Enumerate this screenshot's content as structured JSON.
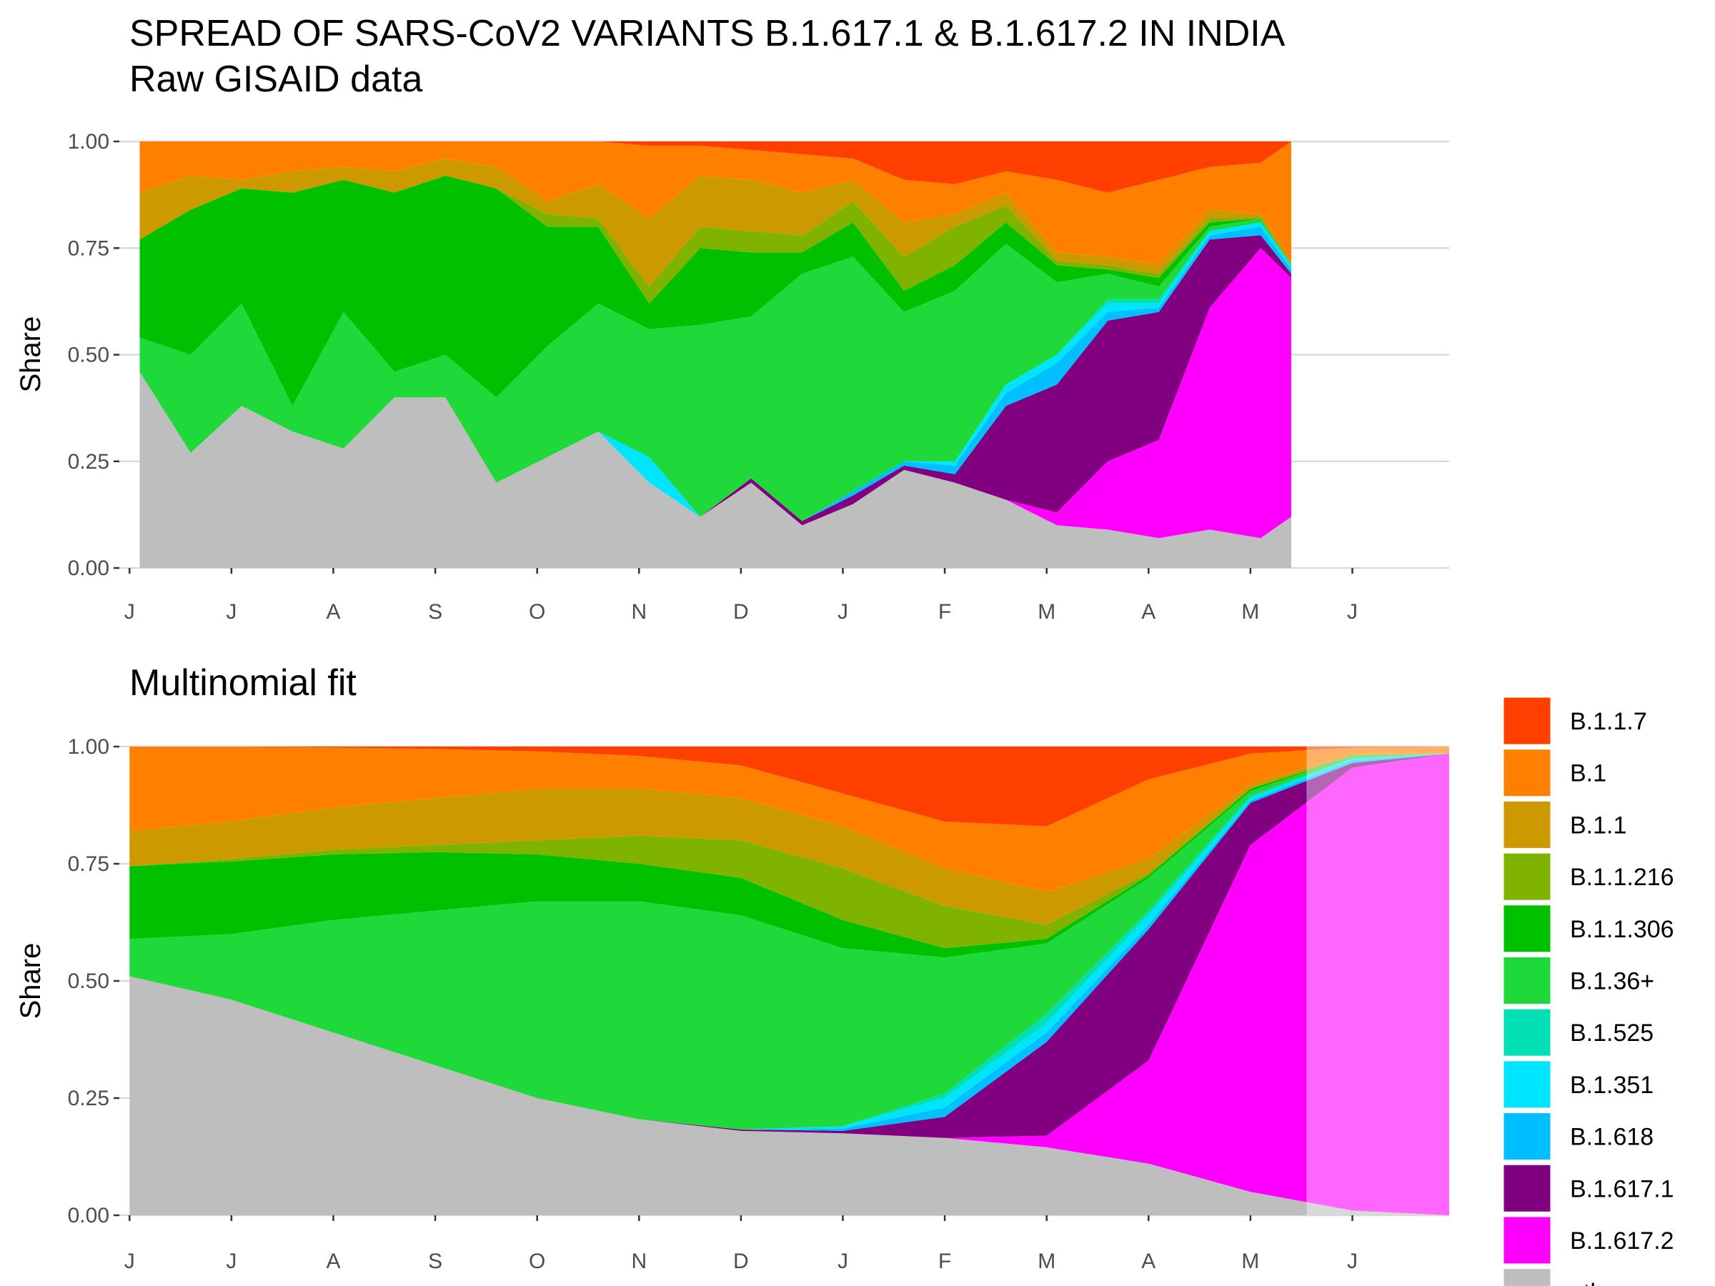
{
  "chart_data": [
    {
      "type": "area",
      "title": "SPREAD OF SARS-CoV2 VARIANTS B.1.617.1 & B.1.617.2 IN INDIA",
      "subtitle": "Raw GISAID data",
      "ylabel": "Share",
      "x": [
        0.1,
        0.6,
        1.1,
        1.6,
        2.1,
        2.6,
        3.1,
        3.6,
        4.1,
        4.6,
        5.1,
        5.6,
        6.1,
        6.6,
        7.1,
        7.6,
        8.1,
        8.6,
        9.1,
        9.6,
        10.1,
        10.6,
        11.1,
        11.4
      ],
      "xlim": [
        -0.1,
        12.95
      ],
      "xticks": [
        {
          "value": 0,
          "label": "J"
        },
        {
          "value": 1,
          "label": "J"
        },
        {
          "value": 2,
          "label": "A"
        },
        {
          "value": 3,
          "label": "S"
        },
        {
          "value": 4,
          "label": "O"
        },
        {
          "value": 5,
          "label": "N"
        },
        {
          "value": 6,
          "label": "D"
        },
        {
          "value": 7,
          "label": "J"
        },
        {
          "value": 8,
          "label": "F"
        },
        {
          "value": 9,
          "label": "M"
        },
        {
          "value": 10,
          "label": "A"
        },
        {
          "value": 11,
          "label": "M"
        },
        {
          "value": 12,
          "label": "J"
        }
      ],
      "ylim": [
        0,
        1
      ],
      "yticks": [
        {
          "value": 0,
          "label": "0.00"
        },
        {
          "value": 0.25,
          "label": "0.25"
        },
        {
          "value": 0.5,
          "label": "0.50"
        },
        {
          "value": 0.75,
          "label": "0.75"
        },
        {
          "value": 1,
          "label": "1.00"
        }
      ],
      "grid": true,
      "series": [
        {
          "name": "other",
          "color": "#bebebe",
          "values": [
            0.46,
            0.27,
            0.38,
            0.32,
            0.28,
            0.4,
            0.4,
            0.2,
            0.26,
            0.32,
            0.2,
            0.12,
            0.2,
            0.1,
            0.15,
            0.23,
            0.2,
            0.16,
            0.1,
            0.09,
            0.07,
            0.09,
            0.07,
            0.12
          ]
        },
        {
          "name": "B.1.617.2",
          "color": "#ff00ff",
          "values": [
            0,
            0,
            0,
            0,
            0,
            0,
            0,
            0,
            0,
            0,
            0,
            0,
            0,
            0,
            0,
            0,
            0,
            0,
            0.03,
            0.16,
            0.23,
            0.52,
            0.68,
            0.56
          ]
        },
        {
          "name": "B.1.617.1",
          "color": "#800080",
          "values": [
            0,
            0,
            0,
            0,
            0,
            0,
            0,
            0,
            0,
            0,
            0,
            0,
            0.01,
            0.01,
            0.02,
            0.01,
            0.02,
            0.22,
            0.3,
            0.33,
            0.3,
            0.16,
            0.03,
            0.01
          ]
        },
        {
          "name": "B.1.618",
          "color": "#00bfff",
          "values": [
            0,
            0,
            0,
            0,
            0,
            0,
            0,
            0,
            0,
            0,
            0,
            0,
            0,
            0,
            0.01,
            0.01,
            0.02,
            0.03,
            0.05,
            0.02,
            0.01,
            0.01,
            0.02,
            0.01
          ]
        },
        {
          "name": "B.1.351",
          "color": "#00e5ff",
          "values": [
            0,
            0,
            0,
            0,
            0,
            0,
            0,
            0,
            0,
            0,
            0.06,
            0,
            0,
            0,
            0,
            0,
            0.01,
            0.02,
            0.02,
            0.02,
            0.01,
            0.01,
            0.01,
            0.01
          ]
        },
        {
          "name": "B.1.525",
          "color": "#00e0b4",
          "values": [
            0,
            0,
            0,
            0,
            0,
            0,
            0,
            0,
            0,
            0,
            0,
            0,
            0,
            0,
            0,
            0,
            0,
            0,
            0,
            0.01,
            0.01,
            0,
            0,
            0
          ]
        },
        {
          "name": "B.1.36+",
          "color": "#1fd83a",
          "values": [
            0.08,
            0.23,
            0.24,
            0.06,
            0.32,
            0.06,
            0.1,
            0.2,
            0.26,
            0.3,
            0.3,
            0.45,
            0.38,
            0.58,
            0.55,
            0.35,
            0.4,
            0.33,
            0.17,
            0.06,
            0.03,
            0.01,
            0.01,
            0
          ]
        },
        {
          "name": "B.1.1.306",
          "color": "#00c000",
          "values": [
            0.23,
            0.34,
            0.27,
            0.5,
            0.31,
            0.42,
            0.42,
            0.49,
            0.28,
            0.18,
            0.06,
            0.18,
            0.15,
            0.05,
            0.08,
            0.05,
            0.06,
            0.05,
            0.04,
            0.01,
            0.02,
            0.01,
            0,
            0
          ]
        },
        {
          "name": "B.1.1.216",
          "color": "#80b300",
          "values": [
            0,
            0,
            0,
            0,
            0,
            0,
            0,
            0,
            0.03,
            0.02,
            0.04,
            0.05,
            0.05,
            0.04,
            0.05,
            0.08,
            0.09,
            0.04,
            0.01,
            0.01,
            0.01,
            0.01,
            0,
            0
          ]
        },
        {
          "name": "B.1.1",
          "color": "#cc9a00",
          "values": [
            0.11,
            0.08,
            0.02,
            0.05,
            0.03,
            0.05,
            0.04,
            0.05,
            0.03,
            0.08,
            0.16,
            0.12,
            0.12,
            0.1,
            0.05,
            0.08,
            0.03,
            0.03,
            0.02,
            0.02,
            0.02,
            0.02,
            0.01,
            0.01
          ]
        },
        {
          "name": "B.1",
          "color": "#ff7f00",
          "values": [
            0.12,
            0.08,
            0.09,
            0.07,
            0.06,
            0.07,
            0.04,
            0.06,
            0.14,
            0.1,
            0.17,
            0.07,
            0.07,
            0.09,
            0.05,
            0.1,
            0.07,
            0.05,
            0.17,
            0.15,
            0.2,
            0.1,
            0.12,
            0.28
          ]
        },
        {
          "name": "B.1.1.7",
          "color": "#ff3f00",
          "values": [
            0,
            0,
            0,
            0,
            0,
            0,
            0,
            0,
            0,
            0,
            0.01,
            0.01,
            0.02,
            0.03,
            0.04,
            0.09,
            0.1,
            0.07,
            0.09,
            0.12,
            0.09,
            0.06,
            0.05,
            0
          ]
        }
      ]
    },
    {
      "type": "area",
      "title": "Multinomial fit",
      "ylabel": "Share",
      "legend": "right",
      "projection_from": 11.55,
      "x": [
        0,
        1,
        2,
        3,
        4,
        5,
        6,
        7,
        8,
        9,
        10,
        11,
        12,
        12.95
      ],
      "xlim": [
        -0.1,
        12.95
      ],
      "xticks": [
        {
          "value": 0,
          "label": "J"
        },
        {
          "value": 1,
          "label": "J"
        },
        {
          "value": 2,
          "label": "A"
        },
        {
          "value": 3,
          "label": "S"
        },
        {
          "value": 4,
          "label": "O"
        },
        {
          "value": 5,
          "label": "N"
        },
        {
          "value": 6,
          "label": "D"
        },
        {
          "value": 7,
          "label": "J"
        },
        {
          "value": 8,
          "label": "F"
        },
        {
          "value": 9,
          "label": "M"
        },
        {
          "value": 10,
          "label": "A"
        },
        {
          "value": 11,
          "label": "M"
        },
        {
          "value": 12,
          "label": "J"
        }
      ],
      "ylim": [
        0,
        1
      ],
      "yticks": [
        {
          "value": 0,
          "label": "0.00"
        },
        {
          "value": 0.25,
          "label": "0.25"
        },
        {
          "value": 0.5,
          "label": "0.50"
        },
        {
          "value": 0.75,
          "label": "0.75"
        },
        {
          "value": 1,
          "label": "1.00"
        }
      ],
      "grid": true,
      "series": [
        {
          "name": "other",
          "color": "#bebebe",
          "values": [
            0.51,
            0.46,
            0.39,
            0.32,
            0.25,
            0.205,
            0.18,
            0.175,
            0.165,
            0.145,
            0.11,
            0.05,
            0.01,
            0
          ]
        },
        {
          "name": "B.1.617.2",
          "color": "#ff00ff",
          "values": [
            0,
            0,
            0,
            0,
            0,
            0,
            0,
            0,
            0,
            0.025,
            0.22,
            0.74,
            0.945,
            0.985
          ]
        },
        {
          "name": "B.1.617.1",
          "color": "#800080",
          "values": [
            0,
            0,
            0,
            0,
            0,
            0,
            0.003,
            0.005,
            0.045,
            0.2,
            0.28,
            0.09,
            0.01,
            0
          ]
        },
        {
          "name": "B.1.618",
          "color": "#00bfff",
          "values": [
            0,
            0,
            0,
            0,
            0,
            0,
            0,
            0.005,
            0.02,
            0.02,
            0.01,
            0.005,
            0.005,
            0
          ]
        },
        {
          "name": "B.1.351",
          "color": "#00e5ff",
          "values": [
            0,
            0,
            0,
            0,
            0,
            0,
            0,
            0.005,
            0.02,
            0.02,
            0.02,
            0.005,
            0.005,
            0
          ]
        },
        {
          "name": "B.1.525",
          "color": "#00e0b4",
          "values": [
            0,
            0,
            0,
            0,
            0,
            0,
            0,
            0,
            0.01,
            0.02,
            0.01,
            0.005,
            0,
            0
          ]
        },
        {
          "name": "B.1.36+",
          "color": "#1fd83a",
          "values": [
            0.08,
            0.14,
            0.24,
            0.33,
            0.42,
            0.465,
            0.457,
            0.38,
            0.29,
            0.15,
            0.07,
            0.01,
            0.005,
            0
          ]
        },
        {
          "name": "B.1.1.306",
          "color": "#00c000",
          "values": [
            0.155,
            0.155,
            0.14,
            0.125,
            0.1,
            0.08,
            0.08,
            0.06,
            0.02,
            0.01,
            0.005,
            0.005,
            0,
            0
          ]
        },
        {
          "name": "B.1.1.216",
          "color": "#80b300",
          "values": [
            0,
            0.005,
            0.01,
            0.015,
            0.03,
            0.06,
            0.08,
            0.11,
            0.09,
            0.03,
            0.005,
            0,
            0,
            0
          ]
        },
        {
          "name": "B.1.1",
          "color": "#cc9a00",
          "values": [
            0.075,
            0.08,
            0.09,
            0.1,
            0.11,
            0.1,
            0.09,
            0.09,
            0.08,
            0.07,
            0.03,
            0.01,
            0.005,
            0
          ]
        },
        {
          "name": "B.1",
          "color": "#ff7f00",
          "values": [
            0.18,
            0.16,
            0.128,
            0.105,
            0.08,
            0.07,
            0.07,
            0.07,
            0.1,
            0.14,
            0.17,
            0.065,
            0.013,
            0.015
          ]
        },
        {
          "name": "B.1.1.7",
          "color": "#ff3f00",
          "values": [
            0,
            0,
            0.002,
            0.005,
            0.01,
            0.02,
            0.04,
            0.1,
            0.16,
            0.17,
            0.07,
            0.015,
            0.002,
            0
          ]
        }
      ]
    }
  ]
}
